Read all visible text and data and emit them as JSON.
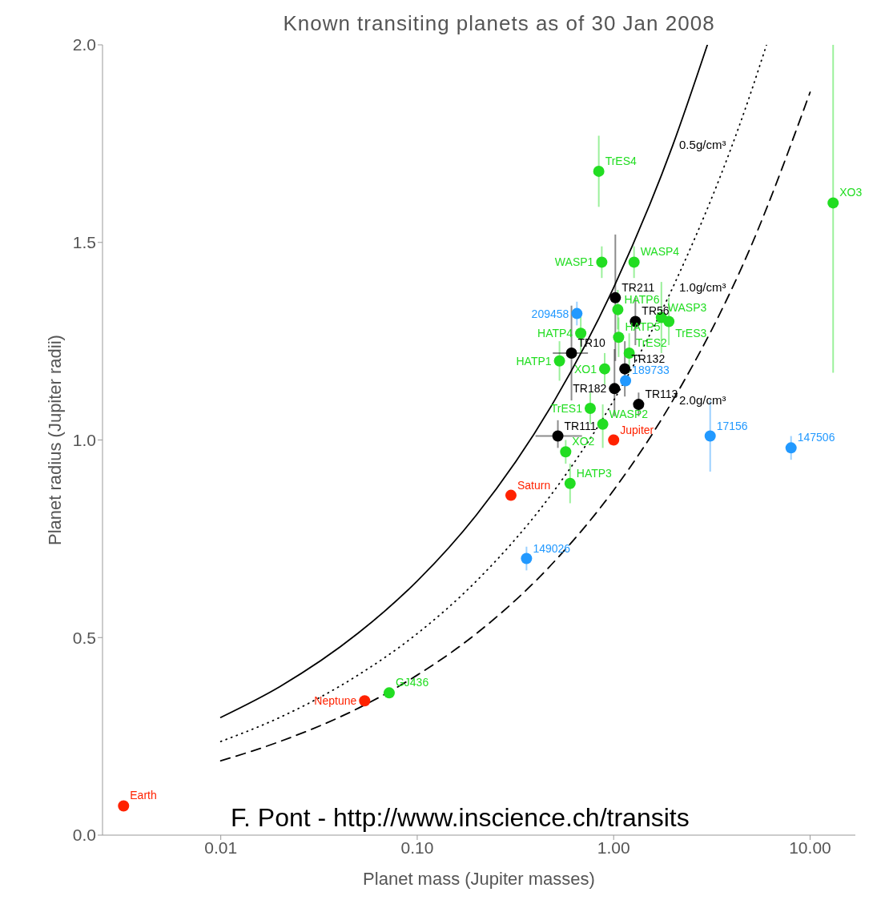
{
  "chart_data": {
    "type": "scatter",
    "title": "Known transiting planets as of 30 Jan 2008",
    "xlabel": "Planet mass (Jupiter masses)",
    "ylabel": "Planet radius (Jupiter radii)",
    "log": "x",
    "xlim": [
      0.0025,
      17
    ],
    "xticks": [
      {
        "value": 0.01,
        "label": "0.01"
      },
      {
        "value": 0.1,
        "label": "0.10"
      },
      {
        "value": 1,
        "label": "1.00"
      },
      {
        "value": 10,
        "label": "10.00"
      }
    ],
    "ylim": [
      0,
      2
    ],
    "yticks": [
      {
        "value": 0,
        "label": "0.0"
      },
      {
        "value": 0.5,
        "label": "0.5"
      },
      {
        "value": 1,
        "label": "1.0"
      },
      {
        "value": 1.5,
        "label": "1.5"
      },
      {
        "value": 2,
        "label": "2.0"
      }
    ],
    "grid": false,
    "legend": false,
    "marker": "circle",
    "annotations": [
      "F. Pont - http://www.inscience.ch/transits"
    ],
    "series": [
      {
        "name": "0.5g/cm³",
        "type": "line",
        "line_style": "solid",
        "marker": "none",
        "color": "#000000",
        "x": [
          0.01,
          0.02,
          0.05,
          0.1,
          0.2,
          0.5,
          1,
          2,
          3
        ],
        "values": [
          0.298,
          0.376,
          0.511,
          0.643,
          0.81,
          1.1,
          1.386,
          1.746,
          2.0
        ]
      },
      {
        "name": "1.0g/cm³",
        "type": "line",
        "line_style": "dotted",
        "marker": "none",
        "color": "#000000",
        "x": [
          0.01,
          0.02,
          0.05,
          0.1,
          0.2,
          0.5,
          1,
          2,
          5,
          6
        ],
        "values": [
          0.237,
          0.298,
          0.405,
          0.51,
          0.643,
          0.873,
          1.1,
          1.386,
          1.88,
          2.0
        ]
      },
      {
        "name": "2.0g/cm³",
        "type": "line",
        "line_style": "dashed",
        "marker": "none",
        "color": "#000000",
        "x": [
          0.01,
          0.02,
          0.05,
          0.1,
          0.2,
          0.5,
          1,
          2,
          5,
          10
        ],
        "values": [
          0.188,
          0.237,
          0.321,
          0.405,
          0.51,
          0.693,
          0.873,
          1.1,
          1.49,
          1.88
        ]
      },
      {
        "name": "TrES4",
        "color": "#22dd22",
        "x": [
          0.84
        ],
        "values": [
          1.68
        ],
        "errors": [
          0.09
        ]
      },
      {
        "name": "WASP1",
        "color": "#22dd22",
        "x": [
          0.87
        ],
        "values": [
          1.45
        ],
        "errors": [
          0.04
        ]
      },
      {
        "name": "WASP4",
        "color": "#22dd22",
        "x": [
          1.27
        ],
        "values": [
          1.45
        ],
        "errors": [
          0.04
        ]
      },
      {
        "name": "HATP6",
        "color": "#22dd22",
        "x": [
          1.05
        ],
        "values": [
          1.33
        ],
        "errors": [
          0.05
        ]
      },
      {
        "name": "HATP4",
        "color": "#22dd22",
        "x": [
          0.68
        ],
        "values": [
          1.27
        ],
        "errors": [
          0.05
        ]
      },
      {
        "name": "HATP5",
        "color": "#22dd22",
        "x": [
          1.06
        ],
        "values": [
          1.26
        ],
        "errors": [
          0.05
        ]
      },
      {
        "name": "TrES2",
        "color": "#22dd22",
        "x": [
          1.2
        ],
        "values": [
          1.22
        ],
        "errors": [
          0.05
        ]
      },
      {
        "name": "XO1",
        "color": "#22dd22",
        "x": [
          0.9
        ],
        "values": [
          1.18
        ],
        "errors": [
          0.04
        ]
      },
      {
        "name": "HATP1",
        "color": "#22dd22",
        "x": [
          0.53
        ],
        "values": [
          1.2
        ],
        "errors": [
          0.05
        ]
      },
      {
        "name": "WASP3",
        "color": "#22dd22",
        "x": [
          1.75
        ],
        "values": [
          1.31
        ],
        "errors": [
          0.09
        ]
      },
      {
        "name": "TrES3",
        "color": "#22dd22",
        "x": [
          1.91
        ],
        "values": [
          1.3
        ],
        "errors": [
          0.06
        ]
      },
      {
        "name": "TrES1",
        "color": "#22dd22",
        "x": [
          0.76
        ],
        "values": [
          1.08
        ],
        "errors": [
          0.04
        ]
      },
      {
        "name": "WASP2",
        "color": "#22dd22",
        "x": [
          0.88
        ],
        "values": [
          1.04
        ],
        "errors": [
          [
            0.98,
            1.09
          ]
        ]
      },
      {
        "name": "XO2",
        "color": "#22dd22",
        "x": [
          0.57
        ],
        "values": [
          0.97
        ],
        "errors": [
          0.03
        ]
      },
      {
        "name": "HATP3",
        "color": "#22dd22",
        "x": [
          0.6
        ],
        "values": [
          0.89
        ],
        "errors": [
          0.05
        ]
      },
      {
        "name": "GJ436",
        "color": "#22dd22",
        "x": [
          0.072
        ],
        "values": [
          0.36
        ]
      },
      {
        "name": "XO3",
        "color": "#22dd22",
        "x": [
          13.1
        ],
        "values": [
          1.6
        ],
        "errors": [
          [
            1.17,
            2.0
          ]
        ]
      },
      {
        "name": "TR211",
        "color": "#000000",
        "x": [
          1.02
        ],
        "values": [
          1.36
        ],
        "errors": [
          [
            1.2,
            1.52
          ]
        ]
      },
      {
        "name": "TR56",
        "color": "#000000",
        "x": [
          1.29
        ],
        "values": [
          1.3
        ],
        "errors": [
          [
            1.24,
            1.36
          ]
        ]
      },
      {
        "name": "TR10",
        "color": "#000000",
        "x": [
          0.61
        ],
        "values": [
          1.22
        ],
        "errors": [
          [
            1.1,
            1.34
          ]
        ],
        "xerrors": [
          [
            0.49,
            0.74
          ]
        ]
      },
      {
        "name": "TR132",
        "color": "#000000",
        "x": [
          1.14
        ],
        "values": [
          1.18
        ],
        "errors": [
          0.07
        ]
      },
      {
        "name": "TR182",
        "color": "#000000",
        "x": [
          1.01
        ],
        "values": [
          1.13
        ],
        "errors": [
          [
            1.06,
            1.23
          ]
        ]
      },
      {
        "name": "TR113",
        "color": "#000000",
        "x": [
          1.34
        ],
        "values": [
          1.09
        ],
        "errors": [
          0.03
        ]
      },
      {
        "name": "TR111",
        "color": "#000000",
        "x": [
          0.52
        ],
        "values": [
          1.01
        ],
        "errors": [
          [
            0.98,
            1.05
          ]
        ],
        "xerrors": [
          [
            0.4,
            0.69
          ]
        ]
      },
      {
        "name": "209458",
        "color": "#2299ff",
        "x": [
          0.65
        ],
        "values": [
          1.32
        ],
        "errors": [
          0.03
        ]
      },
      {
        "name": "189733",
        "color": "#2299ff",
        "x": [
          1.15
        ],
        "values": [
          1.15
        ]
      },
      {
        "name": "149026",
        "color": "#2299ff",
        "x": [
          0.36
        ],
        "values": [
          0.7
        ],
        "errors": [
          0.03
        ]
      },
      {
        "name": "17156",
        "color": "#2299ff",
        "x": [
          3.1
        ],
        "values": [
          1.01
        ],
        "errors": [
          0.09
        ]
      },
      {
        "name": "147506",
        "color": "#2299ff",
        "x": [
          8.0
        ],
        "values": [
          0.98
        ],
        "errors": [
          0.03
        ]
      },
      {
        "name": "Jupiter",
        "color": "#ff2200",
        "x": [
          1.0
        ],
        "values": [
          1.0
        ]
      },
      {
        "name": "Saturn",
        "color": "#ff2200",
        "x": [
          0.3
        ],
        "values": [
          0.86
        ]
      },
      {
        "name": "Neptune",
        "color": "#ff2200",
        "x": [
          0.054
        ],
        "values": [
          0.34
        ]
      },
      {
        "name": "Earth",
        "color": "#ff2200",
        "x": [
          0.0032
        ],
        "values": [
          0.074
        ]
      }
    ]
  }
}
